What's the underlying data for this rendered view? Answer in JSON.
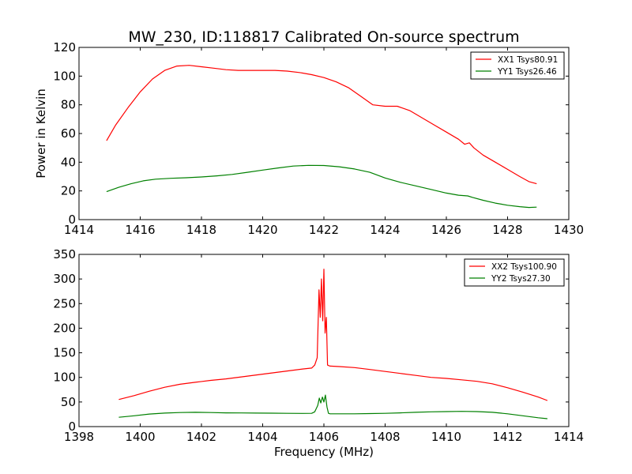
{
  "figure": {
    "title": "MW_230, ID:118817 Calibrated On-source spectrum",
    "ylabel": "Power in Kelvin",
    "xlabel": "Frequency (MHz)"
  },
  "chart_data": [
    {
      "type": "line",
      "xlim": [
        1414,
        1430
      ],
      "ylim": [
        0,
        120
      ],
      "xticks": [
        1414,
        1416,
        1418,
        1420,
        1422,
        1424,
        1426,
        1428,
        1430
      ],
      "yticks": [
        0,
        20,
        40,
        60,
        80,
        100,
        120
      ],
      "legend_position": "top-right",
      "grid": false,
      "series": [
        {
          "name": "XX1 Tsys80.91",
          "color": "#ff0000",
          "x": [
            1414.9,
            1415.2,
            1415.6,
            1416.0,
            1416.4,
            1416.8,
            1417.2,
            1417.6,
            1418.0,
            1418.4,
            1418.8,
            1419.2,
            1419.6,
            1420.0,
            1420.4,
            1420.8,
            1421.2,
            1421.6,
            1422.0,
            1422.4,
            1422.8,
            1423.2,
            1423.6,
            1424.0,
            1424.4,
            1424.8,
            1425.2,
            1425.6,
            1426.0,
            1426.4,
            1426.6,
            1426.75,
            1426.9,
            1427.2,
            1427.6,
            1428.0,
            1428.4,
            1428.7,
            1428.95
          ],
          "y": [
            55,
            66,
            78,
            89,
            98,
            104,
            107,
            107.5,
            106.5,
            105.5,
            104.5,
            104,
            104,
            104,
            104,
            103.5,
            102.5,
            101,
            99,
            96,
            92,
            86,
            80,
            79,
            79,
            76,
            71,
            66,
            61,
            56,
            52.5,
            53.5,
            50,
            45,
            40,
            35,
            30,
            26.5,
            25
          ]
        },
        {
          "name": "YY1 Tsys26.46",
          "color": "#008000",
          "x": [
            1414.9,
            1415.3,
            1415.7,
            1416.1,
            1416.5,
            1417.0,
            1417.5,
            1418.0,
            1418.5,
            1419.0,
            1419.5,
            1420.0,
            1420.5,
            1421.0,
            1421.5,
            1422.0,
            1422.5,
            1423.0,
            1423.5,
            1424.0,
            1424.5,
            1425.0,
            1425.5,
            1426.0,
            1426.4,
            1426.7,
            1426.85,
            1427.2,
            1427.6,
            1428.0,
            1428.4,
            1428.7,
            1428.95
          ],
          "y": [
            19.5,
            22.5,
            25,
            27,
            28.2,
            28.8,
            29.2,
            29.7,
            30.5,
            31.5,
            33,
            34.5,
            36,
            37.3,
            37.8,
            37.7,
            36.8,
            35.3,
            33,
            29,
            26,
            23.5,
            21,
            18.5,
            17,
            16.5,
            15.5,
            13.5,
            11.5,
            10,
            9,
            8.5,
            8.7
          ]
        }
      ]
    },
    {
      "type": "line",
      "xlim": [
        1398,
        1414
      ],
      "ylim": [
        0,
        350
      ],
      "xticks": [
        1398,
        1400,
        1402,
        1404,
        1406,
        1408,
        1410,
        1412,
        1414
      ],
      "yticks": [
        0,
        50,
        100,
        150,
        200,
        250,
        300,
        350
      ],
      "legend_position": "top-right",
      "grid": false,
      "series": [
        {
          "name": "XX2 Tsys100.90",
          "color": "#ff0000",
          "x": [
            1399.3,
            1399.8,
            1400.3,
            1400.8,
            1401.3,
            1401.8,
            1402.3,
            1402.8,
            1403.3,
            1403.8,
            1404.3,
            1404.8,
            1405.3,
            1405.6,
            1405.7,
            1405.78,
            1405.84,
            1405.88,
            1405.92,
            1405.96,
            1406.0,
            1406.04,
            1406.08,
            1406.12,
            1406.16,
            1406.2,
            1406.5,
            1407.0,
            1407.5,
            1408.0,
            1408.5,
            1409.0,
            1409.5,
            1410.0,
            1410.5,
            1411.0,
            1411.5,
            1412.0,
            1412.5,
            1413.0,
            1413.3
          ],
          "y": [
            55,
            63,
            72,
            80,
            86,
            90,
            94,
            97,
            101,
            105,
            109,
            113,
            117,
            119,
            125,
            140,
            278,
            222,
            300,
            215,
            320,
            190,
            222,
            125,
            124,
            123,
            122,
            120,
            116,
            112,
            108,
            104,
            100,
            98,
            95,
            92,
            87,
            79,
            70,
            60,
            53
          ]
        },
        {
          "name": "YY2 Tsys27.30",
          "color": "#008000",
          "x": [
            1399.3,
            1399.8,
            1400.3,
            1400.8,
            1401.3,
            1401.8,
            1402.3,
            1402.8,
            1403.3,
            1403.8,
            1404.3,
            1404.8,
            1405.3,
            1405.6,
            1405.7,
            1405.8,
            1405.85,
            1405.9,
            1405.95,
            1406.0,
            1406.05,
            1406.1,
            1406.15,
            1406.2,
            1406.5,
            1407.0,
            1407.5,
            1408.0,
            1408.5,
            1409.0,
            1409.5,
            1410.0,
            1410.5,
            1411.0,
            1411.5,
            1412.0,
            1412.5,
            1413.0,
            1413.3
          ],
          "y": [
            19,
            22,
            25.5,
            27.5,
            28.5,
            29,
            28.5,
            28,
            27.8,
            27.5,
            27.3,
            27,
            26.8,
            27,
            30,
            43,
            58,
            48,
            60,
            50,
            64,
            40,
            27,
            26,
            26,
            26,
            26.5,
            27,
            28,
            29,
            30,
            30.5,
            31,
            30.5,
            29,
            26,
            22,
            18,
            16
          ]
        }
      ]
    }
  ]
}
